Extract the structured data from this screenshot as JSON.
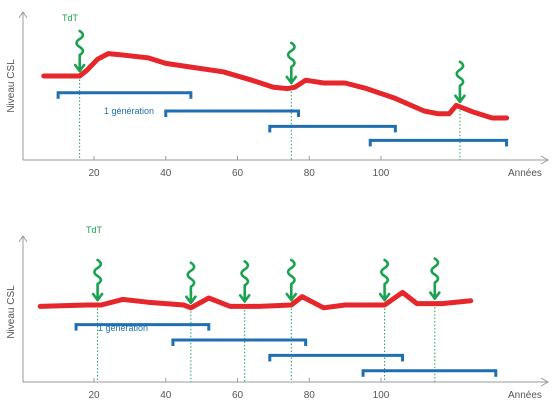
{
  "colors": {
    "csl": "#e5262b",
    "generation": "#1f6fb2",
    "telomerase": "#1aa251",
    "axis": "#9a9a9a"
  },
  "chart_data": [
    {
      "type": "line",
      "ylabel": "Niveau CSL",
      "xlabel": "Années",
      "x_ticks": [
        20,
        40,
        60,
        80,
        100
      ],
      "xlim": [
        2,
        135
      ],
      "ylim": [
        0,
        100
      ],
      "csl_series": {
        "x": [
          6,
          12,
          16,
          18,
          21,
          24,
          28,
          35,
          40,
          48,
          56,
          64,
          70,
          74,
          76,
          79,
          84,
          90,
          96,
          104,
          112,
          116,
          119,
          121,
          126,
          131,
          135
        ],
        "y": [
          60,
          60,
          60,
          64,
          72,
          76,
          75,
          73,
          69,
          66,
          63,
          57,
          52,
          51,
          52,
          57,
          55,
          55,
          51,
          44,
          35,
          33,
          33,
          39,
          34,
          30,
          30
        ]
      },
      "generation_label": "1 génération",
      "generations": [
        {
          "start": 10,
          "end": 47,
          "level": 48
        },
        {
          "start": 40,
          "end": 77,
          "level": 35
        },
        {
          "start": 69,
          "end": 104,
          "level": 24
        },
        {
          "start": 97,
          "end": 135,
          "level": 14
        }
      ],
      "telomerase_label": "TdT",
      "telomerase_events": [
        {
          "x": 16,
          "labeled": true
        },
        {
          "x": 75,
          "labeled": false
        },
        {
          "x": 122,
          "labeled": false
        }
      ]
    },
    {
      "type": "line",
      "ylabel": "Niveau CSL",
      "xlabel": "Années",
      "x_ticks": [
        20,
        40,
        60,
        80,
        100
      ],
      "xlim": [
        2,
        135
      ],
      "ylim": [
        0,
        100
      ],
      "csl_series": {
        "x": [
          5,
          18,
          22,
          28,
          35,
          45,
          47,
          52,
          58,
          66,
          75,
          78,
          84,
          90,
          96,
          101,
          106,
          110,
          117,
          125
        ],
        "y": [
          54,
          55,
          55,
          59,
          57,
          55,
          53,
          60,
          54,
          54,
          55,
          61,
          53,
          55,
          55,
          55,
          64,
          56,
          56,
          58
        ]
      },
      "generation_label": "1 génération",
      "generations": [
        {
          "start": 15,
          "end": 52,
          "level": 41
        },
        {
          "start": 42,
          "end": 79,
          "level": 30
        },
        {
          "start": 69,
          "end": 106,
          "level": 19
        },
        {
          "start": 95,
          "end": 132,
          "level": 8
        }
      ],
      "telomerase_label": "TdT",
      "telomerase_events": [
        {
          "x": 21,
          "labeled": true
        },
        {
          "x": 47,
          "labeled": false
        },
        {
          "x": 62,
          "labeled": false
        },
        {
          "x": 75,
          "labeled": false
        },
        {
          "x": 101,
          "labeled": false
        },
        {
          "x": 115,
          "labeled": false
        }
      ]
    }
  ]
}
